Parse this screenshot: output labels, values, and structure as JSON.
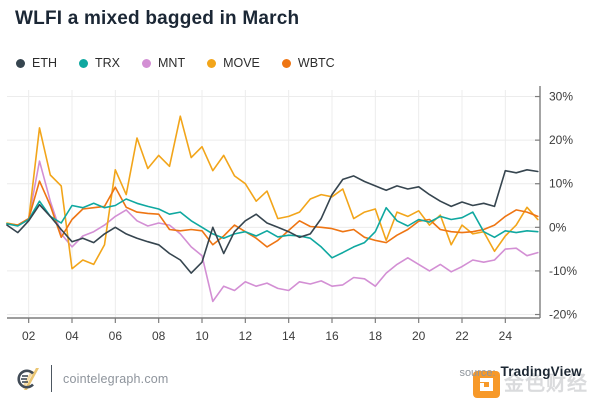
{
  "title": "WLFI a mixed bagged in March",
  "legend": [
    {
      "label": "ETH",
      "color": "#36454f"
    },
    {
      "label": "TRX",
      "color": "#0fa8a0"
    },
    {
      "label": "MNT",
      "color": "#d38fd4"
    },
    {
      "label": "MOVE",
      "color": "#f2a51a"
    },
    {
      "label": "WBTC",
      "color": "#ee7513"
    }
  ],
  "footer": {
    "brand": "cointelegraph.com",
    "source_label": "source:",
    "source_name": "TradingView",
    "watermark_text": "金色财经",
    "watermark_orange": "#f7941e"
  },
  "chart_data": {
    "type": "line",
    "title": "WLFI a mixed bagged in March",
    "x_unit": "day of March",
    "x_range": [
      1,
      25.6
    ],
    "y_range": [
      -20.8,
      31.5
    ],
    "x_ticks": [
      "02",
      "04",
      "06",
      "08",
      "10",
      "12",
      "14",
      "16",
      "18",
      "20",
      "22",
      "24"
    ],
    "x_tick_days": [
      2,
      4,
      6,
      8,
      10,
      12,
      14,
      16,
      18,
      20,
      22,
      24
    ],
    "y_ticks": [
      "30%",
      "20%",
      "10%",
      "0%",
      "-10%",
      "-20%"
    ],
    "y_tick_values": [
      30,
      20,
      10,
      0,
      -10,
      -20
    ],
    "grid": true,
    "legend_position": "top-left",
    "x_start": 1,
    "x_step": 0.5,
    "colors": {
      "grid": "#ececec",
      "axis": "#7d7d7d",
      "tick_text": "#3c3c3c"
    },
    "draw_order": [
      2,
      3,
      4,
      1,
      0
    ],
    "series": [
      {
        "name": "ETH",
        "color": "#36454f",
        "values": [
          0.5,
          -1.2,
          1.5,
          5.2,
          2.5,
          -0.5,
          -3.3,
          -2.5,
          -3.5,
          -1.5,
          0,
          -1.5,
          -2.5,
          -3.3,
          -4,
          -6,
          -7.5,
          -10.5,
          -8,
          0,
          -6,
          -1,
          1.5,
          3,
          1,
          0,
          -1,
          -2.3,
          -1.5,
          2,
          7.5,
          11,
          11.8,
          10.5,
          9.5,
          8.5,
          9.5,
          8.8,
          9.3,
          7.5,
          6,
          4.8,
          5.8,
          5,
          5.5,
          4.8,
          13,
          12.5,
          13.2,
          12.8
        ]
      },
      {
        "name": "TRX",
        "color": "#0fa8a0",
        "values": [
          0.8,
          0.3,
          1.8,
          6,
          2.5,
          1,
          5,
          4.5,
          5.5,
          4.5,
          5,
          6.5,
          5.5,
          4.8,
          4.2,
          3,
          3.5,
          1.5,
          0,
          -1.5,
          -2.5,
          -1.5,
          -1,
          -2,
          -0.8,
          -2.2,
          -1.8,
          -2,
          -2.5,
          -4.5,
          -7,
          -5.8,
          -4.5,
          -3.5,
          -1,
          4.5,
          1.5,
          0.3,
          1.8,
          1.2,
          2.5,
          1.8,
          2.2,
          3.5,
          -1,
          -2.3,
          -0.8,
          -1.2,
          -0.8,
          -1
        ]
      },
      {
        "name": "MNT",
        "color": "#d38fd4",
        "values": [
          0.8,
          0.5,
          2,
          15.2,
          6,
          -1.5,
          -4.5,
          -2,
          -1,
          0.5,
          2.5,
          4,
          1.5,
          0.3,
          1,
          0.5,
          -1.5,
          -4.5,
          -6.5,
          -17,
          -13.5,
          -14.5,
          -12.5,
          -13.5,
          -12.8,
          -14,
          -14.5,
          -12.5,
          -13,
          -12.3,
          -13.5,
          -13.2,
          -11.5,
          -11.8,
          -13.5,
          -10.5,
          -8.5,
          -7,
          -8.5,
          -10,
          -8.5,
          -10.2,
          -9,
          -7.5,
          -8,
          -7.5,
          -5,
          -4.8,
          -6.5,
          -5.8
        ]
      },
      {
        "name": "MOVE",
        "color": "#f2a51a",
        "values": [
          1,
          0.5,
          1.8,
          22.8,
          12,
          9.5,
          -9.5,
          -7.5,
          -8.5,
          -4,
          13.2,
          7.5,
          20.5,
          13.5,
          16.5,
          14,
          25.5,
          16,
          18.5,
          13,
          16.5,
          11.8,
          10,
          6,
          8.3,
          2,
          2.5,
          3.5,
          6.5,
          7.5,
          7,
          8.8,
          2,
          3.5,
          4.2,
          -3,
          3.5,
          2.5,
          3.8,
          0.5,
          2.8,
          -4,
          0.5,
          -1.5,
          -1,
          -5.5,
          -2,
          0.5,
          4.6,
          1.8
        ]
      },
      {
        "name": "WBTC",
        "color": "#ee7513",
        "values": [
          0.8,
          0.5,
          2,
          10.6,
          5,
          -2.3,
          1.8,
          4.2,
          4.5,
          4.8,
          9.2,
          4.6,
          3.5,
          3.2,
          3,
          -0.5,
          -0.8,
          -0.5,
          -0.8,
          -4,
          -2,
          0.5,
          -1,
          -2.5,
          -4.5,
          -3,
          -0.7,
          1.5,
          0.2,
          0,
          -0.3,
          -1,
          -0.5,
          -2.3,
          -3,
          -3.5,
          -1.8,
          -0.5,
          1.4,
          1.8,
          -0.5,
          -1,
          -1.2,
          -1,
          -0.5,
          0.5,
          2.5,
          4,
          3.5,
          2.5
        ]
      }
    ]
  }
}
